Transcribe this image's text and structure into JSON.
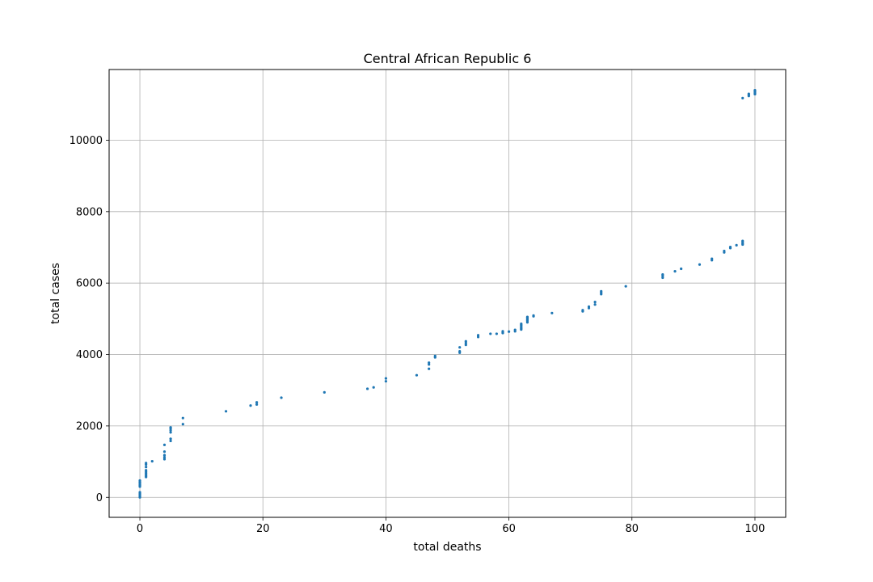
{
  "chart_data": {
    "type": "scatter",
    "title": "Central African Republic 6",
    "xlabel": "total deaths",
    "ylabel": "total cases",
    "xlim": [
      -5,
      105
    ],
    "ylim": [
      -560,
      11980
    ],
    "xticks": [
      0,
      20,
      40,
      60,
      80,
      100
    ],
    "yticks": [
      0,
      2000,
      4000,
      6000,
      8000,
      10000
    ],
    "grid": true,
    "marker_color": "#1f77b4",
    "points": [
      [
        0,
        0
      ],
      [
        0,
        20
      ],
      [
        0,
        50
      ],
      [
        0,
        80
      ],
      [
        0,
        110
      ],
      [
        0,
        143
      ],
      [
        0,
        300
      ],
      [
        0,
        330
      ],
      [
        0,
        360
      ],
      [
        0,
        400
      ],
      [
        0,
        430
      ],
      [
        0,
        470
      ],
      [
        1,
        570
      ],
      [
        1,
        600
      ],
      [
        1,
        640
      ],
      [
        1,
        680
      ],
      [
        1,
        720
      ],
      [
        1,
        760
      ],
      [
        1,
        850
      ],
      [
        1,
        920
      ],
      [
        1,
        960
      ],
      [
        2,
        1010
      ],
      [
        4,
        1070
      ],
      [
        4,
        1120
      ],
      [
        4,
        1180
      ],
      [
        4,
        1280
      ],
      [
        4,
        1470
      ],
      [
        5,
        1580
      ],
      [
        5,
        1640
      ],
      [
        5,
        1820
      ],
      [
        5,
        1880
      ],
      [
        5,
        1930
      ],
      [
        5,
        1960
      ],
      [
        7,
        2050
      ],
      [
        7,
        2220
      ],
      [
        14,
        2410
      ],
      [
        18,
        2570
      ],
      [
        19,
        2600
      ],
      [
        19,
        2660
      ],
      [
        23,
        2790
      ],
      [
        30,
        2940
      ],
      [
        37,
        3040
      ],
      [
        38,
        3080
      ],
      [
        40,
        3250
      ],
      [
        40,
        3330
      ],
      [
        45,
        3420
      ],
      [
        47,
        3600
      ],
      [
        47,
        3720
      ],
      [
        47,
        3770
      ],
      [
        48,
        3920
      ],
      [
        48,
        3960
      ],
      [
        52,
        4050
      ],
      [
        52,
        4090
      ],
      [
        52,
        4200
      ],
      [
        53,
        4270
      ],
      [
        53,
        4320
      ],
      [
        53,
        4370
      ],
      [
        55,
        4490
      ],
      [
        55,
        4540
      ],
      [
        57,
        4580
      ],
      [
        58,
        4580
      ],
      [
        59,
        4600
      ],
      [
        59,
        4620
      ],
      [
        59,
        4650
      ],
      [
        60,
        4640
      ],
      [
        61,
        4650
      ],
      [
        61,
        4690
      ],
      [
        62,
        4700
      ],
      [
        62,
        4730
      ],
      [
        62,
        4760
      ],
      [
        62,
        4800
      ],
      [
        62,
        4830
      ],
      [
        62,
        4860
      ],
      [
        63,
        4900
      ],
      [
        63,
        4940
      ],
      [
        63,
        4970
      ],
      [
        63,
        5000
      ],
      [
        63,
        5030
      ],
      [
        63,
        5050
      ],
      [
        64,
        5070
      ],
      [
        64,
        5090
      ],
      [
        67,
        5160
      ],
      [
        72,
        5210
      ],
      [
        72,
        5240
      ],
      [
        73,
        5300
      ],
      [
        73,
        5340
      ],
      [
        74,
        5400
      ],
      [
        74,
        5470
      ],
      [
        75,
        5690
      ],
      [
        75,
        5730
      ],
      [
        75,
        5770
      ],
      [
        79,
        5910
      ],
      [
        85,
        6150
      ],
      [
        85,
        6200
      ],
      [
        85,
        6240
      ],
      [
        87,
        6330
      ],
      [
        88,
        6400
      ],
      [
        91,
        6520
      ],
      [
        93,
        6640
      ],
      [
        93,
        6680
      ],
      [
        95,
        6860
      ],
      [
        95,
        6900
      ],
      [
        96,
        6980
      ],
      [
        96,
        7010
      ],
      [
        97,
        7060
      ],
      [
        98,
        7080
      ],
      [
        98,
        7110
      ],
      [
        98,
        7150
      ],
      [
        98,
        7180
      ],
      [
        98,
        11180
      ],
      [
        99,
        11240
      ],
      [
        99,
        11270
      ],
      [
        99,
        11300
      ],
      [
        100,
        11290
      ],
      [
        100,
        11320
      ],
      [
        100,
        11350
      ],
      [
        100,
        11380
      ],
      [
        100,
        11400
      ]
    ]
  }
}
